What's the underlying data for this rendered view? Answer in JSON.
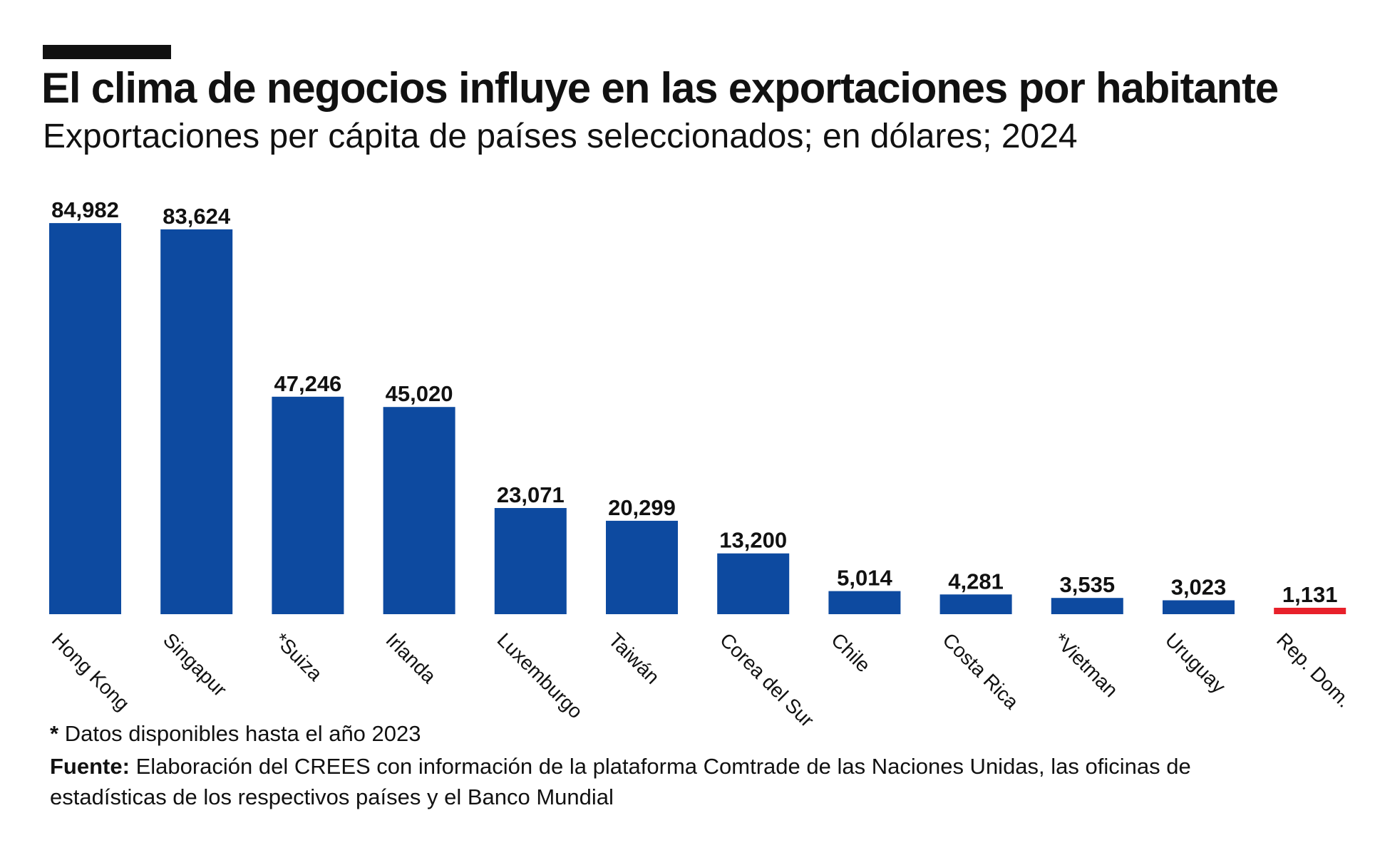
{
  "header": {
    "title": "El clima de negocios influye en las exportaciones por habitante",
    "subtitle": "Exportaciones per cápita de países seleccionados; en dólares; 2024"
  },
  "colors": {
    "bar": "#0d4aa0",
    "highlight": "#e8202a",
    "text": "#111111"
  },
  "chart_data": {
    "type": "bar",
    "title": "El clima de negocios influye en las exportaciones por habitante",
    "subtitle": "Exportaciones per cápita de países seleccionados; en dólares; 2024",
    "xlabel": "",
    "ylabel": "",
    "ylim": [
      0,
      85000
    ],
    "grid": false,
    "categories": [
      "Hong Kong",
      "Singapur",
      "*Suiza",
      "Irlanda",
      "Luxemburgo",
      "Taiwán",
      "Corea del Sur",
      "Chile",
      "Costa Rica",
      "*Vietman",
      "Uruguay",
      "Rep. Dom."
    ],
    "values": [
      84982,
      83624,
      47246,
      45020,
      23071,
      20299,
      13200,
      5014,
      4281,
      3535,
      3023,
      1131
    ],
    "data_labels": [
      "84,982",
      "83,624",
      "47,246",
      "45,020",
      "23,071",
      "20,299",
      "13,200",
      "5,014",
      "4,281",
      "3,535",
      "3,023",
      "1,131"
    ],
    "highlight": [
      "Rep. Dom."
    ]
  },
  "footer": {
    "note_marker": "*",
    "note_text": "Datos disponibles hasta el año 2023",
    "source_label": "Fuente:",
    "source_text": "Elaboración del CREES con información de la plataforma Comtrade de las Naciones Unidas, las oficinas de estadísticas de los respectivos países y el Banco Mundial"
  }
}
